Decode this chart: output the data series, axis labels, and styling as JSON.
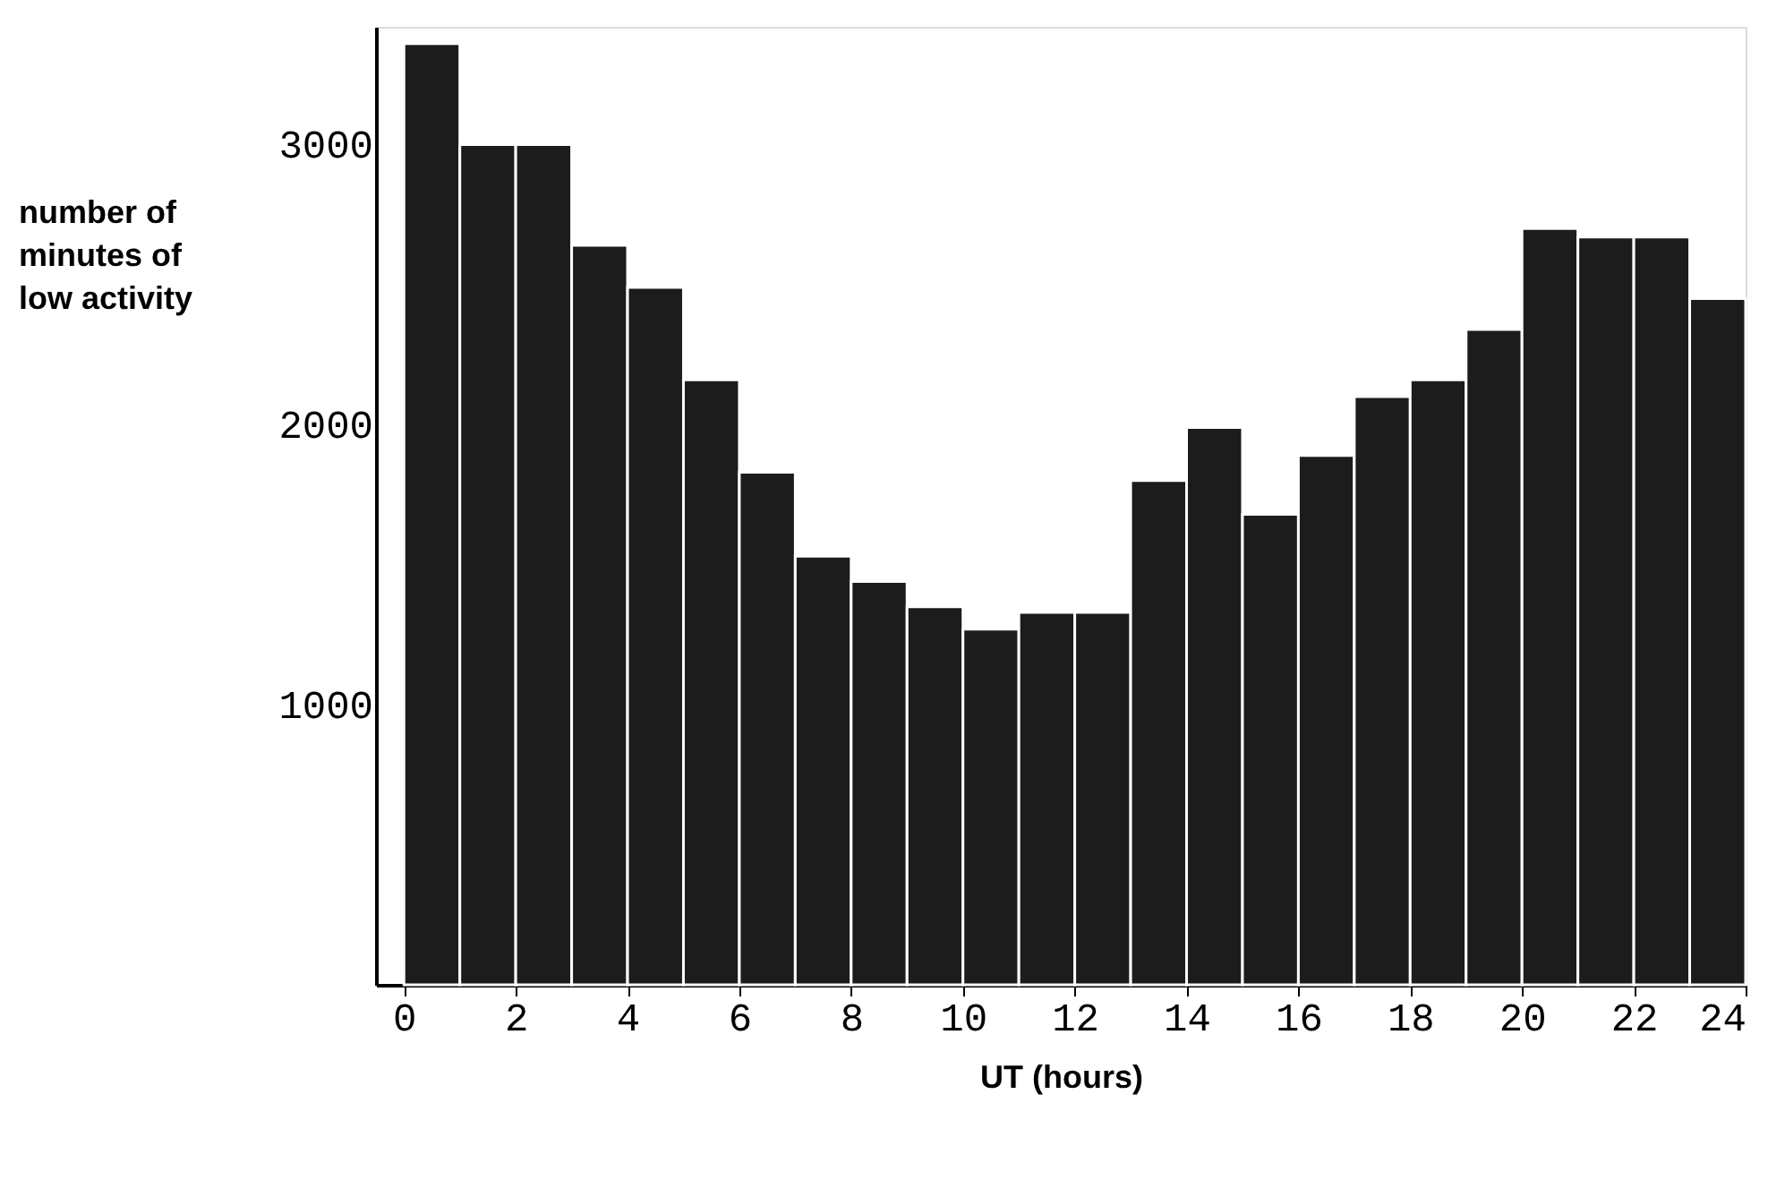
{
  "chart_data": {
    "type": "histogram",
    "xlabel": "UT (hours)",
    "ylabel": "number of\nminutes of\nlow  activity",
    "bins": [
      0,
      1,
      2,
      3,
      4,
      5,
      6,
      7,
      8,
      9,
      10,
      11,
      12,
      13,
      14,
      15,
      16,
      17,
      18,
      19,
      20,
      21,
      22,
      23,
      24
    ],
    "values": [
      3360,
      3000,
      3000,
      2640,
      2490,
      2160,
      1830,
      1530,
      1440,
      1350,
      1270,
      1330,
      1330,
      1800,
      1990,
      1680,
      1890,
      2100,
      2160,
      2340,
      2700,
      2670,
      2670,
      2450
    ],
    "color": "#1c1c1c",
    "xlim": [
      -0.5,
      24
    ],
    "ylim": [
      0,
      3420
    ],
    "xticks": [
      0,
      2,
      4,
      6,
      8,
      10,
      12,
      14,
      16,
      18,
      20,
      22,
      24
    ],
    "yticks": [
      1000,
      2000,
      3000
    ],
    "grid": false
  }
}
